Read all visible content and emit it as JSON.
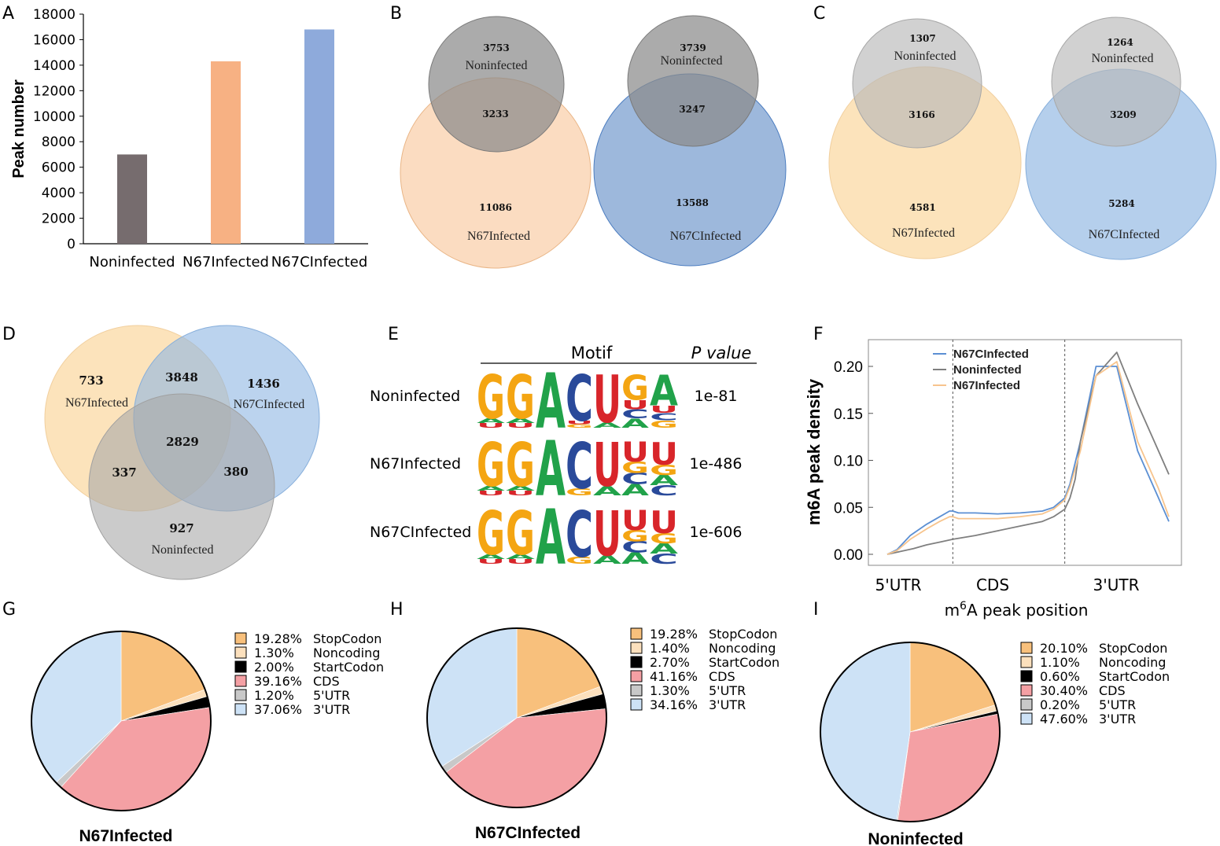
{
  "panels": {
    "A": "A",
    "B": "B",
    "C": "C",
    "D": "D",
    "E": "E",
    "F": "F",
    "G": "G",
    "H": "H",
    "I": "I"
  },
  "colors": {
    "noninfected": "#766c6e",
    "n67": "#f7b183",
    "n67c": "#8eaadb",
    "venn_gray": "#8a8a8a",
    "venn_peach": "#f8c08e",
    "venn_blue": "#4c7dc0",
    "venn_lightgray": "#b8b8b8",
    "venn_lightpeach": "#fbd9a4",
    "venn_lightblue": "#8db5e2",
    "line_n67c": "#5b8fd3",
    "line_non": "#7f7f7f",
    "line_n67": "#f7c48d",
    "stop": "#f8c07c",
    "noncoding": "#fce0bd",
    "start": "#000000",
    "cds": "#f4a0a4",
    "utr5": "#c8c8c8",
    "utr3": "#cde2f6",
    "logo_G": "#f4a512",
    "logo_A": "#21a24a",
    "logo_C": "#2a4a9a",
    "logo_U": "#d8252a"
  },
  "chart_data": [
    {
      "id": "A",
      "type": "bar",
      "title": "",
      "xlabel": "",
      "ylabel": "Peak number",
      "categories": [
        "Noninfected",
        "N67Infected",
        "N67CInfected"
      ],
      "values": [
        7000,
        14300,
        16800
      ],
      "ylim": [
        0,
        18000
      ],
      "yticks": [
        "0",
        "2000",
        "4000",
        "6000",
        "8000",
        "10000",
        "12000",
        "14000",
        "16000",
        "18000"
      ]
    },
    {
      "id": "B",
      "type": "venn",
      "left": {
        "top_only": "3753",
        "top_label": "Noninfected",
        "overlap": "3233",
        "bottom_only": "11086",
        "bottom_label": "N67Infected"
      },
      "right": {
        "top_only": "3739",
        "top_label": "Noninfected",
        "overlap": "3247",
        "bottom_only": "13588",
        "bottom_label": "N67CInfected"
      }
    },
    {
      "id": "C",
      "type": "venn",
      "left": {
        "top_only": "1307",
        "top_label": "Noninfected",
        "overlap": "3166",
        "bottom_only": "4581",
        "bottom_label": "N67Infected"
      },
      "right": {
        "top_only": "1264",
        "top_label": "Noninfected",
        "overlap": "3209",
        "bottom_only": "5284",
        "bottom_label": "N67CInfected"
      }
    },
    {
      "id": "D",
      "type": "venn3",
      "n67_only": "733",
      "n67_label": "N67Infected",
      "n67c_only": "1436",
      "n67c_label": "N67CInfected",
      "n67_n67c": "3848",
      "all": "2829",
      "n67_non": "337",
      "n67c_non": "380",
      "non_only": "927",
      "non_label": "Noninfected"
    },
    {
      "id": "E",
      "type": "table",
      "headers": [
        "Motif",
        "P value"
      ],
      "rows": [
        {
          "label": "Noninfected",
          "pvalue": "1e-81",
          "motif": [
            "G",
            "G",
            "A",
            "C",
            "U",
            "G",
            "A"
          ]
        },
        {
          "label": "N67Infected",
          "pvalue": "1e-486",
          "motif": [
            "G",
            "G",
            "A",
            "C",
            "U",
            "U",
            "U"
          ]
        },
        {
          "label": "N67CInfected",
          "pvalue": "1e-606",
          "motif": [
            "G",
            "G",
            "A",
            "C",
            "U",
            "U",
            "U"
          ]
        }
      ]
    },
    {
      "id": "F",
      "type": "line",
      "ylabel": "m6A peak density",
      "xlabel_pre": "m",
      "xlabel_sup": "6",
      "xlabel_post": "A peak position",
      "xcats": [
        "5'UTR",
        "CDS",
        "3'UTR"
      ],
      "ylim": [
        -0.01,
        0.23
      ],
      "xlim": [
        0,
        3
      ],
      "yticks": [
        "0.00",
        "0.05",
        "0.10",
        "0.15",
        "0.20"
      ],
      "boundaries": [
        1,
        2
      ],
      "series": [
        {
          "name": "N67CInfected",
          "x": [
            0.0,
            0.15,
            0.35,
            0.6,
            0.8,
            0.95,
            1.0,
            1.05,
            1.2,
            1.4,
            1.6,
            1.8,
            1.9,
            2.0,
            2.05,
            2.15,
            2.3,
            2.5,
            2.7,
            2.9,
            3.0
          ],
          "y": [
            0.0,
            0.005,
            0.02,
            0.032,
            0.04,
            0.046,
            0.046,
            0.044,
            0.044,
            0.043,
            0.044,
            0.046,
            0.05,
            0.06,
            0.075,
            0.12,
            0.2,
            0.2,
            0.11,
            0.06,
            0.035
          ]
        },
        {
          "name": "Noninfected",
          "x": [
            0.0,
            0.2,
            0.4,
            0.6,
            0.8,
            1.0,
            1.2,
            1.4,
            1.6,
            1.8,
            1.9,
            2.0,
            2.05,
            2.1,
            2.15,
            2.3,
            2.5,
            2.7,
            2.9,
            3.0
          ],
          "y": [
            0.0,
            0.003,
            0.006,
            0.01,
            0.013,
            0.016,
            0.02,
            0.025,
            0.03,
            0.035,
            0.04,
            0.048,
            0.06,
            0.08,
            0.12,
            0.19,
            0.215,
            0.16,
            0.11,
            0.085
          ]
        },
        {
          "name": "N67Infected",
          "x": [
            0.0,
            0.15,
            0.35,
            0.6,
            0.8,
            0.95,
            1.0,
            1.05,
            1.2,
            1.4,
            1.6,
            1.8,
            1.9,
            2.0,
            2.05,
            2.15,
            2.3,
            2.5,
            2.7,
            2.9,
            3.0
          ],
          "y": [
            0.0,
            0.004,
            0.016,
            0.027,
            0.035,
            0.04,
            0.04,
            0.038,
            0.038,
            0.038,
            0.04,
            0.043,
            0.048,
            0.058,
            0.072,
            0.11,
            0.19,
            0.205,
            0.12,
            0.07,
            0.04
          ]
        }
      ]
    },
    {
      "id": "G",
      "type": "pie",
      "title": "N67Infected",
      "slices": [
        {
          "label": "StopCodon",
          "pct": "19.28%",
          "value": 19.28
        },
        {
          "label": "Noncoding",
          "pct": "1.30%",
          "value": 1.3
        },
        {
          "label": "StartCodon",
          "pct": "2.00%",
          "value": 2.0
        },
        {
          "label": "CDS",
          "pct": "39.16%",
          "value": 39.16
        },
        {
          "label": "5'UTR",
          "pct": "1.20%",
          "value": 1.2
        },
        {
          "label": "3'UTR",
          "pct": "37.06%",
          "value": 37.06
        }
      ]
    },
    {
      "id": "H",
      "type": "pie",
      "title": "N67CInfected",
      "slices": [
        {
          "label": "StopCodon",
          "pct": "19.28%",
          "value": 19.28
        },
        {
          "label": "Noncoding",
          "pct": "1.40%",
          "value": 1.4
        },
        {
          "label": "StartCodon",
          "pct": "2.70%",
          "value": 2.7
        },
        {
          "label": "CDS",
          "pct": "41.16%",
          "value": 41.16
        },
        {
          "label": "5'UTR",
          "pct": "1.30%",
          "value": 1.3
        },
        {
          "label": "3'UTR",
          "pct": "34.16%",
          "value": 34.16
        }
      ]
    },
    {
      "id": "I",
      "type": "pie",
      "title": "Noninfected",
      "slices": [
        {
          "label": "StopCodon",
          "pct": "20.10%",
          "value": 20.1
        },
        {
          "label": "Noncoding",
          "pct": "1.10%",
          "value": 1.1
        },
        {
          "label": "StartCodon",
          "pct": "0.60%",
          "value": 0.6
        },
        {
          "label": "CDS",
          "pct": "30.40%",
          "value": 30.4
        },
        {
          "label": "5'UTR",
          "pct": "0.20%",
          "value": 0.2
        },
        {
          "label": "3'UTR",
          "pct": "47.60%",
          "value": 47.6
        }
      ]
    }
  ]
}
